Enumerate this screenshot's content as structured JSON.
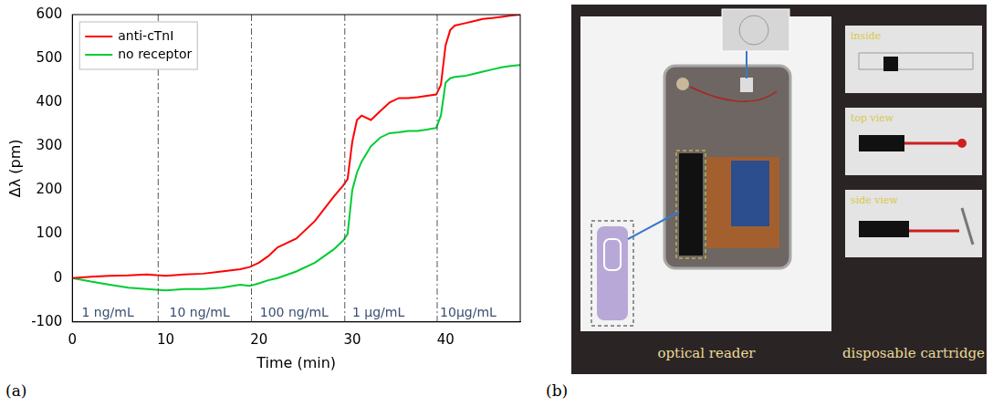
{
  "chart_data": {
    "type": "line",
    "x_label": "Time (min)",
    "y_label": "Δλ (pm)",
    "x": [
      0,
      2,
      4,
      6,
      8,
      10,
      12,
      14,
      16,
      18,
      19,
      20,
      21,
      22,
      24,
      26,
      28,
      29,
      29.5,
      30,
      30.5,
      31,
      32,
      33,
      34,
      35,
      36,
      37,
      38,
      39,
      39.5,
      40,
      40.5,
      41,
      42,
      43,
      44,
      45,
      46,
      47,
      48
    ],
    "series": [
      {
        "name": "anti-cTnI",
        "color": "#ff0000",
        "line_style": "solid",
        "values": [
          0,
          3,
          5,
          6,
          8,
          5,
          8,
          10,
          15,
          20,
          25,
          35,
          50,
          70,
          90,
          130,
          185,
          210,
          225,
          310,
          360,
          370,
          360,
          380,
          400,
          410,
          410,
          412,
          415,
          418,
          440,
          530,
          565,
          575,
          580,
          585,
          590,
          592,
          595,
          598,
          600
        ]
      },
      {
        "name": "no receptor",
        "color": "#00cc33",
        "line_style": "solid",
        "values": [
          0,
          -8,
          -15,
          -22,
          -25,
          -28,
          -25,
          -25,
          -22,
          -15,
          -18,
          -12,
          -5,
          0,
          15,
          35,
          65,
          85,
          100,
          200,
          240,
          265,
          300,
          320,
          330,
          332,
          335,
          335,
          338,
          342,
          370,
          445,
          455,
          458,
          460,
          465,
          470,
          475,
          480,
          483,
          485
        ]
      }
    ],
    "xlim": [
      0,
      48
    ],
    "xticks": [
      0,
      10,
      20,
      30,
      40
    ],
    "ylim": [
      -100,
      600
    ],
    "yticks": [
      -100,
      0,
      100,
      200,
      300,
      400,
      500,
      600
    ],
    "grid": false,
    "legend": "upper left",
    "vlines": [
      9.2,
      19.2,
      29.2,
      39.1
    ],
    "annotations": [
      {
        "x": 1.0,
        "y": -80,
        "text": "1 ng/mL"
      },
      {
        "x": 10.4,
        "y": -80,
        "text": "10 ng/mL"
      },
      {
        "x": 20.1,
        "y": -80,
        "text": "100 ng/mL"
      },
      {
        "x": 30.0,
        "y": -80,
        "text": "1 μg/mL"
      },
      {
        "x": 39.4,
        "y": -80,
        "text": "10μg/mL"
      }
    ]
  },
  "figure": {
    "panel_labels": [
      "(a)",
      "(b)"
    ],
    "photo": {
      "inset_labels": [
        "inside",
        "top view",
        "side view"
      ],
      "captions": [
        "optical reader",
        "disposable cartridge"
      ]
    }
  }
}
